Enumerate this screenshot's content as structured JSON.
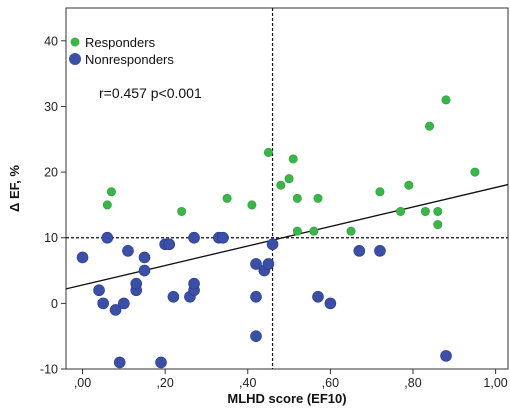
{
  "chart_data": {
    "type": "scatter",
    "xlabel": "MLHD score (EF10)",
    "ylabel": "Δ EF, %",
    "xlim": [
      -0.04,
      1.03
    ],
    "ylim": [
      -10,
      45
    ],
    "x_ticks": [
      ",00",
      ",20",
      ",40",
      ",60",
      ",80",
      "1,00"
    ],
    "x_tick_values": [
      0,
      0.2,
      0.4,
      0.6,
      0.8,
      1.0
    ],
    "y_ticks": [
      "-10",
      "0",
      "10",
      "20",
      "30",
      "40"
    ],
    "y_tick_values": [
      -10,
      0,
      10,
      20,
      30,
      40
    ],
    "annotation": "r=0.457 p<0.001",
    "legend_position": "top-left",
    "grid": false,
    "reference_lines": {
      "vertical_x": 0.46,
      "horizontal_y": 10
    },
    "regression_line": {
      "x": [
        -0.04,
        1.03
      ],
      "y": [
        2.2,
        18.1
      ]
    },
    "series": [
      {
        "name": "Responders",
        "color": "#39b54a",
        "points": [
          {
            "x": 0.06,
            "y": 15
          },
          {
            "x": 0.07,
            "y": 17
          },
          {
            "x": 0.24,
            "y": 14
          },
          {
            "x": 0.35,
            "y": 16
          },
          {
            "x": 0.41,
            "y": 15
          },
          {
            "x": 0.45,
            "y": 23
          },
          {
            "x": 0.48,
            "y": 18
          },
          {
            "x": 0.5,
            "y": 19
          },
          {
            "x": 0.51,
            "y": 22
          },
          {
            "x": 0.52,
            "y": 16
          },
          {
            "x": 0.52,
            "y": 11
          },
          {
            "x": 0.56,
            "y": 11
          },
          {
            "x": 0.57,
            "y": 16
          },
          {
            "x": 0.65,
            "y": 11
          },
          {
            "x": 0.72,
            "y": 17
          },
          {
            "x": 0.77,
            "y": 14
          },
          {
            "x": 0.79,
            "y": 18
          },
          {
            "x": 0.83,
            "y": 14
          },
          {
            "x": 0.84,
            "y": 27
          },
          {
            "x": 0.86,
            "y": 14
          },
          {
            "x": 0.86,
            "y": 12
          },
          {
            "x": 0.88,
            "y": 31
          },
          {
            "x": 0.95,
            "y": 20
          }
        ]
      },
      {
        "name": "Nonresponders",
        "color": "#3c4fa6",
        "points": [
          {
            "x": 0.0,
            "y": 7
          },
          {
            "x": 0.04,
            "y": 2
          },
          {
            "x": 0.05,
            "y": 0
          },
          {
            "x": 0.06,
            "y": 10
          },
          {
            "x": 0.08,
            "y": -1
          },
          {
            "x": 0.09,
            "y": -9
          },
          {
            "x": 0.1,
            "y": 0
          },
          {
            "x": 0.11,
            "y": 8
          },
          {
            "x": 0.13,
            "y": 2
          },
          {
            "x": 0.13,
            "y": 3
          },
          {
            "x": 0.15,
            "y": 5
          },
          {
            "x": 0.15,
            "y": 7
          },
          {
            "x": 0.19,
            "y": -9
          },
          {
            "x": 0.2,
            "y": 9
          },
          {
            "x": 0.21,
            "y": 9
          },
          {
            "x": 0.22,
            "y": 1
          },
          {
            "x": 0.26,
            "y": 1
          },
          {
            "x": 0.27,
            "y": 2
          },
          {
            "x": 0.27,
            "y": 3
          },
          {
            "x": 0.27,
            "y": 10
          },
          {
            "x": 0.33,
            "y": 10
          },
          {
            "x": 0.34,
            "y": 10
          },
          {
            "x": 0.42,
            "y": 6
          },
          {
            "x": 0.42,
            "y": 1
          },
          {
            "x": 0.42,
            "y": -5
          },
          {
            "x": 0.44,
            "y": 5
          },
          {
            "x": 0.45,
            "y": 6
          },
          {
            "x": 0.46,
            "y": 9
          },
          {
            "x": 0.57,
            "y": 1
          },
          {
            "x": 0.6,
            "y": 0
          },
          {
            "x": 0.67,
            "y": 8
          },
          {
            "x": 0.72,
            "y": 8
          },
          {
            "x": 0.88,
            "y": -8
          }
        ]
      }
    ]
  }
}
